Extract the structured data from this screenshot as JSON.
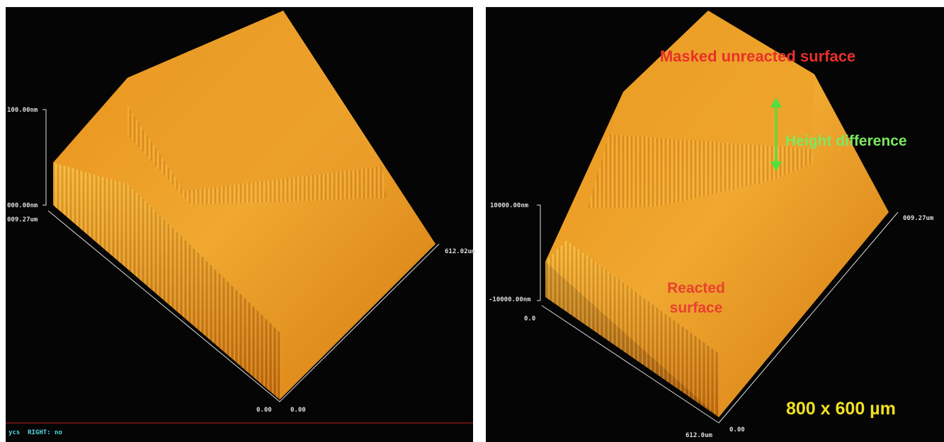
{
  "left_scan": {
    "z_top": "100.00nm",
    "z_bottom": "000.00nm",
    "x_end": "009.27um",
    "y_end": "612.02um",
    "origin_a": "0.00",
    "origin_b": "0.00",
    "status": "ycs  RIGHT: no"
  },
  "right_scan": {
    "masked_label": "Masked unreacted surface",
    "height_label": "Height difference",
    "reacted_label": [
      "Reacted",
      "surface"
    ],
    "size_label": "800 x 600 µm",
    "z_top": "10000.00nm",
    "z_bottom": "-10000.00nm",
    "z_origin": "0.0",
    "x_end": "009.27um",
    "y_end": "612.0um",
    "origin": "0.00"
  }
}
